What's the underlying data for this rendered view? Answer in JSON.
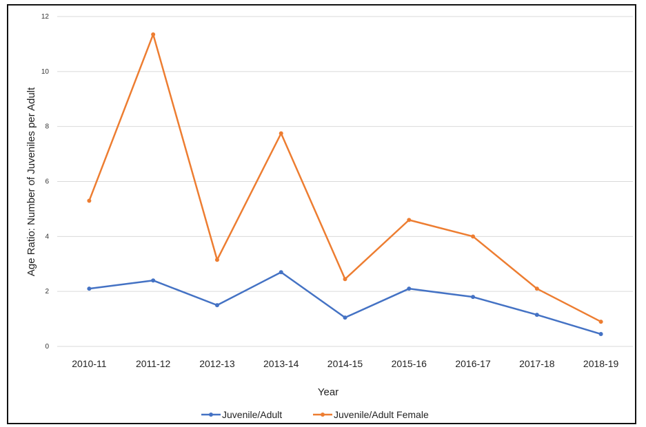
{
  "chart_data": {
    "type": "line",
    "title": "",
    "xlabel": "Year",
    "ylabel": "Age Ratio:  Number of Juveniles per Adult",
    "categories": [
      "2010-11",
      "2011-12",
      "2012-13",
      "2013-14",
      "2014-15",
      "2015-16",
      "2016-17",
      "2017-18",
      "2018-19"
    ],
    "ylim": [
      0,
      12
    ],
    "yticks": [
      "0",
      "2",
      "4",
      "6",
      "8",
      "10",
      "12"
    ],
    "grid": "horizontal",
    "legend": "bottom",
    "series": [
      {
        "name": "Juvenile/Adult",
        "color": "#4472C4",
        "values": [
          2.1,
          2.4,
          1.5,
          2.7,
          1.05,
          2.1,
          1.8,
          1.15,
          0.45
        ]
      },
      {
        "name": "Juvenile/Adult Female",
        "color": "#ED7D31",
        "values": [
          5.3,
          11.35,
          3.15,
          7.75,
          2.45,
          4.6,
          4.0,
          2.1,
          0.9
        ]
      }
    ]
  }
}
